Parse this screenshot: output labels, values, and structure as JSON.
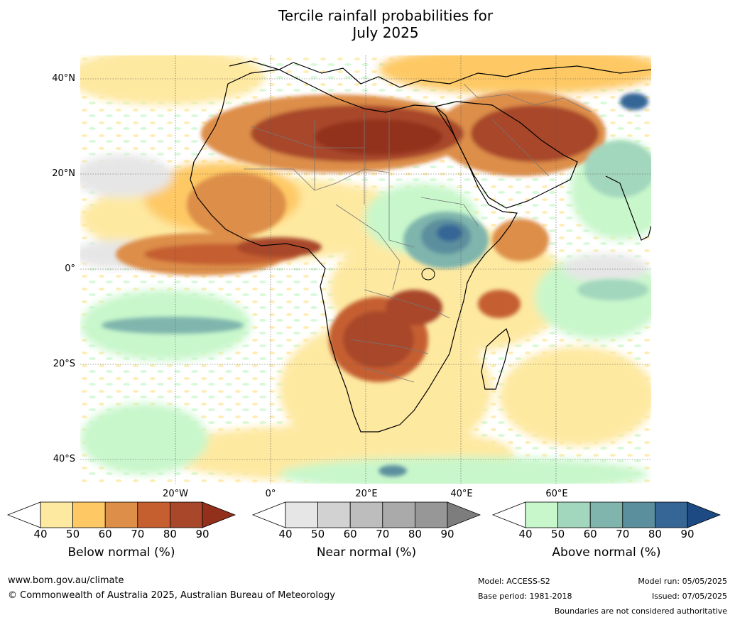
{
  "title_line1": "Tercile rainfall probabilities for",
  "title_line2": "July 2025",
  "lat_labels": [
    "40°N",
    "20°N",
    "0°",
    "20°S",
    "40°S"
  ],
  "lon_labels": [
    "20°W",
    "0°",
    "20°E",
    "40°E",
    "60°E"
  ],
  "colorbars": [
    {
      "label": "Below normal (%)",
      "ticks": [
        "40",
        "50",
        "60",
        "70",
        "80",
        "90"
      ],
      "colors": [
        "#ffffff",
        "#fee9a1",
        "#fec965",
        "#dd8e48",
        "#c55f30",
        "#a8472a",
        "#93301c"
      ]
    },
    {
      "label": "Near normal (%)",
      "ticks": [
        "40",
        "50",
        "60",
        "70",
        "80",
        "90"
      ],
      "colors": [
        "#ffffff",
        "#e6e6e6",
        "#d2d2d2",
        "#bdbdbd",
        "#aaaaaa",
        "#979797",
        "#7d7d7d"
      ]
    },
    {
      "label": "Above normal (%)",
      "ticks": [
        "40",
        "50",
        "60",
        "70",
        "80",
        "90"
      ],
      "colors": [
        "#ffffff",
        "#c8f7cb",
        "#a3d7bd",
        "#7fb5ad",
        "#5b8f9e",
        "#356696",
        "#1d4a82"
      ]
    }
  ],
  "footer": {
    "website": "www.bom.gov.au/climate",
    "copyright": "© Commonwealth of Australia 2025, Australian Bureau of Meteorology",
    "model": "Model: ACCESS-S2",
    "base_period": "Base period: 1981-2018",
    "model_run": "Model run: 05/05/2025",
    "issued": "Issued: 07/05/2025",
    "disclaimer": "Boundaries are not considered authoritative"
  }
}
